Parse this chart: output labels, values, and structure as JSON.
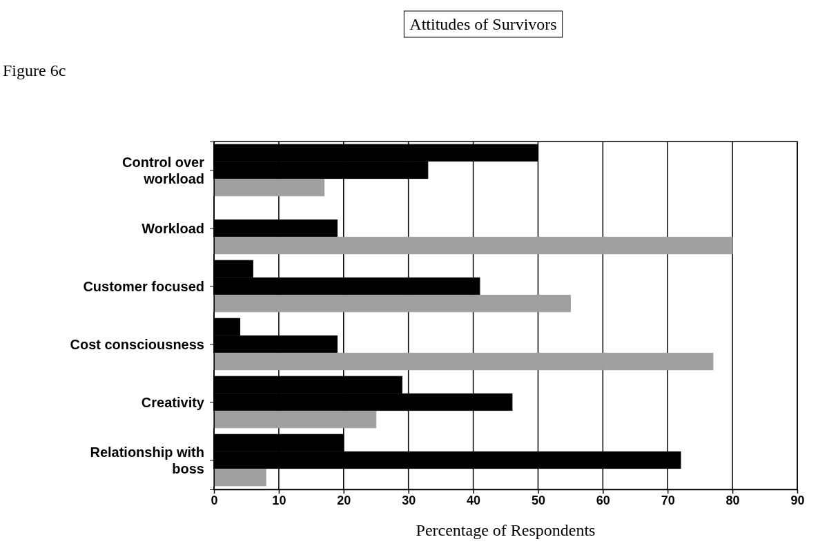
{
  "chart_data": {
    "type": "bar",
    "title": "Attitudes of Survivors",
    "xlabel": "Percentage of Respondents",
    "annotations": [
      "Figure 6c"
    ],
    "orientation": "horizontal",
    "categories": [
      "Control over workload",
      "Workload",
      "Customer focused",
      "Cost consciousness",
      "Creativity",
      "Relationship with boss"
    ],
    "series": [
      {
        "color": "#000000",
        "values": [
          50,
          0,
          6,
          4,
          29,
          20
        ]
      },
      {
        "color": "#000000",
        "values": [
          33,
          19,
          41,
          19,
          46,
          72
        ]
      },
      {
        "color": "#a0a0a0",
        "values": [
          17,
          80,
          55,
          77,
          25,
          8
        ]
      }
    ],
    "xlim": [
      0,
      90
    ],
    "xticks": [
      0,
      10,
      20,
      30,
      40,
      50,
      60,
      70,
      80,
      90
    ],
    "grid": "x"
  }
}
